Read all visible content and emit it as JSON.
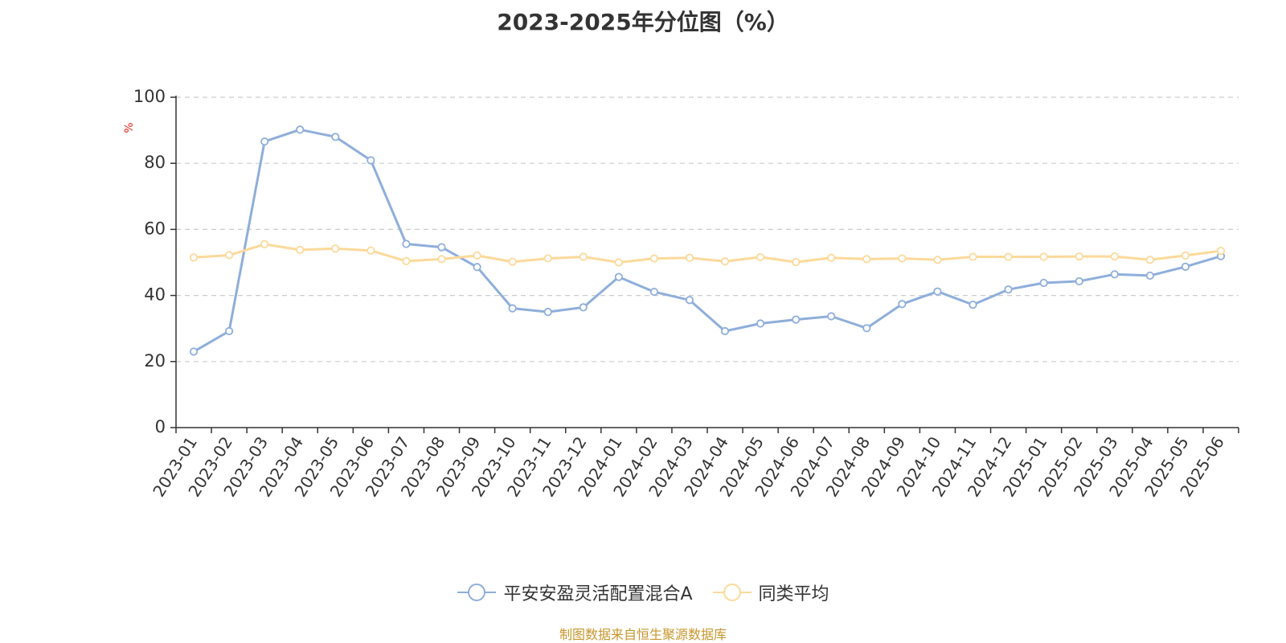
{
  "chart_data": {
    "type": "line",
    "title": "2023-2025年分位图（%）",
    "ylabel": "%",
    "xlabel": "",
    "ylim": [
      0,
      100
    ],
    "yticks": [
      0,
      20,
      40,
      60,
      80,
      100
    ],
    "grid": "horizontal-dashed",
    "legend_position": "bottom-center",
    "categories": [
      "2023-01",
      "2023-02",
      "2023-03",
      "2023-04",
      "2023-05",
      "2023-06",
      "2023-07",
      "2023-08",
      "2023-09",
      "2023-10",
      "2023-11",
      "2023-12",
      "2024-01",
      "2024-02",
      "2024-03",
      "2024-04",
      "2024-05",
      "2024-06",
      "2024-07",
      "2024-08",
      "2024-09",
      "2024-10",
      "2024-11",
      "2024-12",
      "2025-01",
      "2025-02",
      "2025-03",
      "2025-04",
      "2025-05",
      "2025-06"
    ],
    "series": [
      {
        "name": "平安安盈灵活配置混合A",
        "color": "#8eaedb",
        "values": [
          23.0,
          29.2,
          86.6,
          90.2,
          88.0,
          80.9,
          55.6,
          54.6,
          48.6,
          36.1,
          35.0,
          36.4,
          45.6,
          41.1,
          38.6,
          29.2,
          31.5,
          32.7,
          33.7,
          30.1,
          37.4,
          41.2,
          37.2,
          41.8,
          43.8,
          44.3,
          46.4,
          46.0,
          48.7,
          51.9
        ]
      },
      {
        "name": "同类平均",
        "color": "#fcd99a",
        "values": [
          51.5,
          52.2,
          55.5,
          53.8,
          54.2,
          53.6,
          50.4,
          51.0,
          52.1,
          50.2,
          51.2,
          51.7,
          50.0,
          51.2,
          51.4,
          50.3,
          51.6,
          50.1,
          51.4,
          51.0,
          51.2,
          50.8,
          51.7,
          51.7,
          51.7,
          51.8,
          51.8,
          50.8,
          52.1,
          53.5
        ]
      }
    ]
  },
  "source_note": "制图数据来自恒生聚源数据库"
}
